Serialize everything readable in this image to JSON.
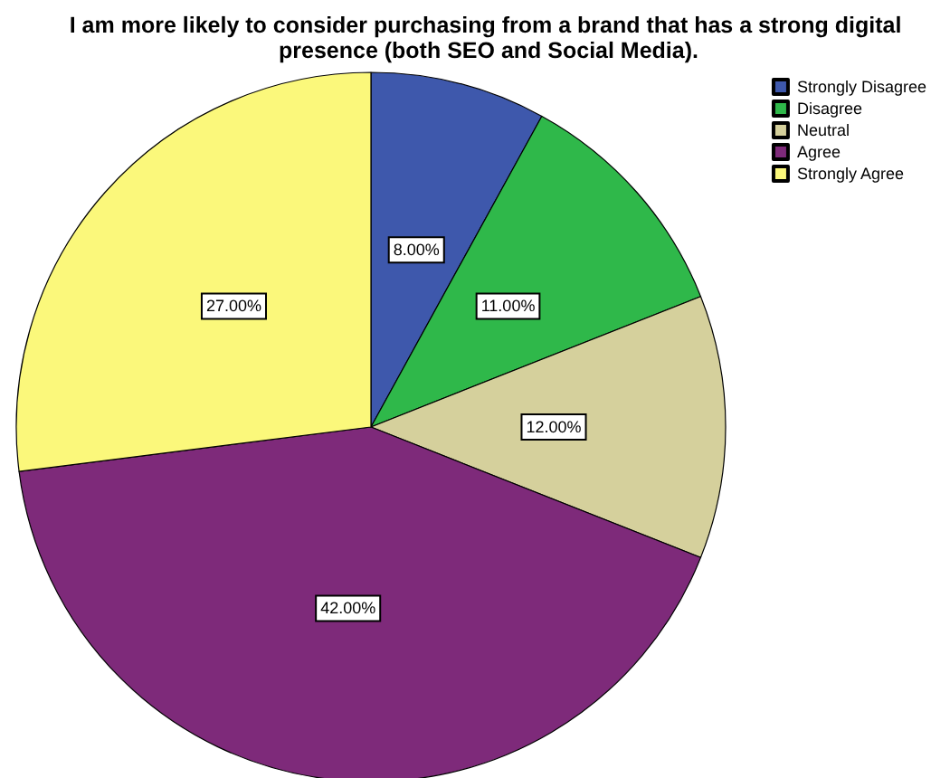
{
  "chart_data": {
    "type": "pie",
    "title": "I am more likely to consider purchasing from a brand that has a strong digital presence (both SEO and Social Media).",
    "categories": [
      "Strongly Disagree",
      "Disagree",
      "Neutral",
      "Agree",
      "Strongly Agree"
    ],
    "values": [
      8,
      11,
      12,
      42,
      27
    ],
    "value_labels": [
      "8.00%",
      "11.00%",
      "12.00%",
      "42.00%",
      "27.00%"
    ],
    "colors": [
      "#3e58ac",
      "#2fb84a",
      "#d5d09c",
      "#7e2a7a",
      "#fbf87b"
    ],
    "legend": "top right"
  }
}
